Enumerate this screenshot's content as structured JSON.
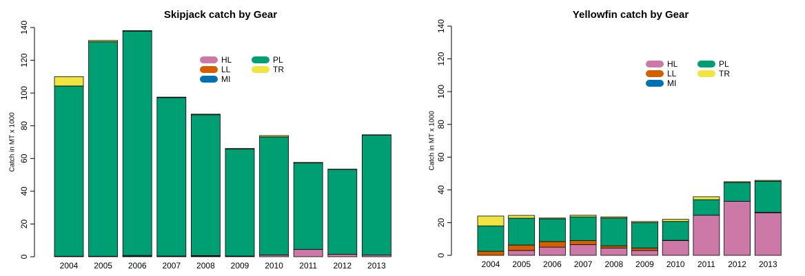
{
  "chart_data": [
    {
      "type": "bar",
      "stacked": true,
      "title": "Skipjack catch by Gear",
      "ylabel": "Catch in MT x 1000",
      "categories": [
        "2004",
        "2005",
        "2006",
        "2007",
        "2008",
        "2009",
        "2010",
        "2011",
        "2012",
        "2013"
      ],
      "series": [
        {
          "name": "HL",
          "color": "#cc79a7",
          "values": [
            0.2,
            0.2,
            0.2,
            0.3,
            0.3,
            0.3,
            1,
            4.5,
            1.5,
            1
          ]
        },
        {
          "name": "LL",
          "color": "#d55e00",
          "values": [
            0.1,
            0.1,
            0.1,
            0.1,
            0.1,
            0.1,
            0.1,
            0,
            0,
            0
          ]
        },
        {
          "name": "MI",
          "color": "#0072b2",
          "values": [
            0,
            0,
            0.5,
            0,
            0.3,
            0,
            0,
            0,
            0,
            0
          ]
        },
        {
          "name": "PL",
          "color": "#009e73",
          "values": [
            104,
            131,
            137,
            96.8,
            86,
            65.4,
            72.1,
            52.8,
            51.8,
            73.3
          ]
        },
        {
          "name": "TR",
          "color": "#f0e442",
          "values": [
            5.7,
            0.8,
            0.3,
            0.3,
            0.4,
            0.3,
            0.8,
            0.3,
            0.2,
            0.2
          ]
        }
      ],
      "ylim": [
        0,
        140
      ],
      "yticks": [
        0,
        20,
        40,
        60,
        80,
        100,
        120,
        140
      ]
    },
    {
      "type": "bar",
      "stacked": true,
      "title": "Yellowfin catch by Gear",
      "ylabel": "Catch in MT x 1000",
      "categories": [
        "2004",
        "2005",
        "2006",
        "2007",
        "2008",
        "2009",
        "2010",
        "2011",
        "2012",
        "2013"
      ],
      "series": [
        {
          "name": "HL",
          "color": "#cc79a7",
          "values": [
            0,
            3,
            5,
            6.5,
            4.5,
            3,
            9,
            24.5,
            33,
            26
          ]
        },
        {
          "name": "LL",
          "color": "#d55e00",
          "values": [
            2.5,
            3.3,
            3.4,
            2.5,
            1.3,
            1.5,
            0.2,
            0,
            0,
            0
          ]
        },
        {
          "name": "MI",
          "color": "#0072b2",
          "values": [
            0,
            0,
            0,
            0,
            0,
            0,
            0,
            0,
            0,
            0.3
          ]
        },
        {
          "name": "PL",
          "color": "#009e73",
          "values": [
            15.5,
            16.4,
            13.9,
            14.5,
            17,
            15.5,
            11.5,
            9.5,
            11.5,
            19
          ]
        },
        {
          "name": "TR",
          "color": "#f0e442",
          "values": [
            6,
            1.7,
            0.5,
            1,
            0.7,
            0.7,
            1.3,
            1.8,
            0.5,
            0.5
          ]
        }
      ],
      "ylim": [
        0,
        140
      ],
      "yticks": [
        0,
        20,
        40,
        60,
        80,
        100,
        120,
        140
      ]
    }
  ]
}
